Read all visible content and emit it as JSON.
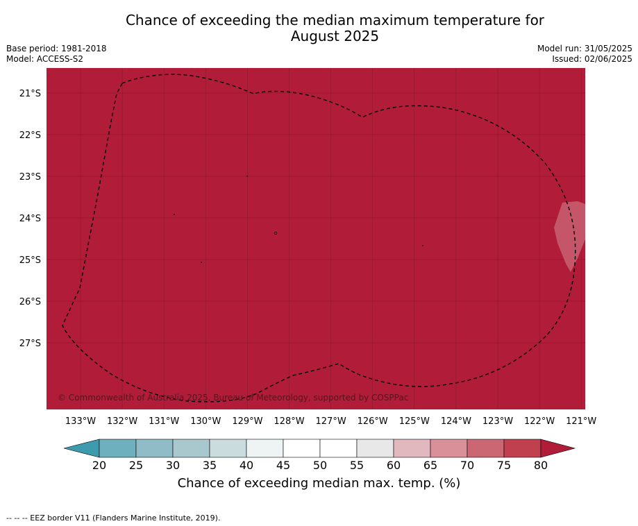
{
  "header": {
    "title_line1": "Chance of exceeding the median maximum temperature for",
    "title_line2": "August 2025",
    "base_period": "Base period: 1981-2018",
    "model": "Model: ACCESS-S2",
    "model_run": "Model run: 31/05/2025",
    "issued": "Issued: 02/06/2025"
  },
  "map": {
    "lat_labels": [
      "21°S",
      "22°S",
      "23°S",
      "24°S",
      "25°S",
      "26°S",
      "27°S"
    ],
    "lon_labels": [
      "133°W",
      "132°W",
      "131°W",
      "130°W",
      "129°W",
      "128°W",
      "127°W",
      "126°W",
      "125°W",
      "124°W",
      "123°W",
      "122°W",
      "121°W"
    ],
    "copyright": "© Commonwealth of Australia 2025, Bureau of Meteorology, supported by COSPPac",
    "fill_color": "#b11c38",
    "eez_line_style": "dashed black"
  },
  "colorbar": {
    "ticks": [
      "20",
      "25",
      "30",
      "35",
      "40",
      "45",
      "50",
      "55",
      "60",
      "65",
      "70",
      "75",
      "80"
    ],
    "colors": [
      "#3e9bad",
      "#6fb0bf",
      "#8fbcc6",
      "#a9c8cd",
      "#cbdcdf",
      "#eef3f4",
      "#ffffff",
      "#ffffff",
      "#e8e8e8",
      "#e2b8bf",
      "#d99098",
      "#cb6773",
      "#c04050",
      "#b11c38"
    ],
    "label": "Chance of exceeding median max. temp. (%)"
  },
  "footer": {
    "legend_text": "--  --  -- EEZ border V11 (Flanders Marine Institute, 2019)."
  }
}
